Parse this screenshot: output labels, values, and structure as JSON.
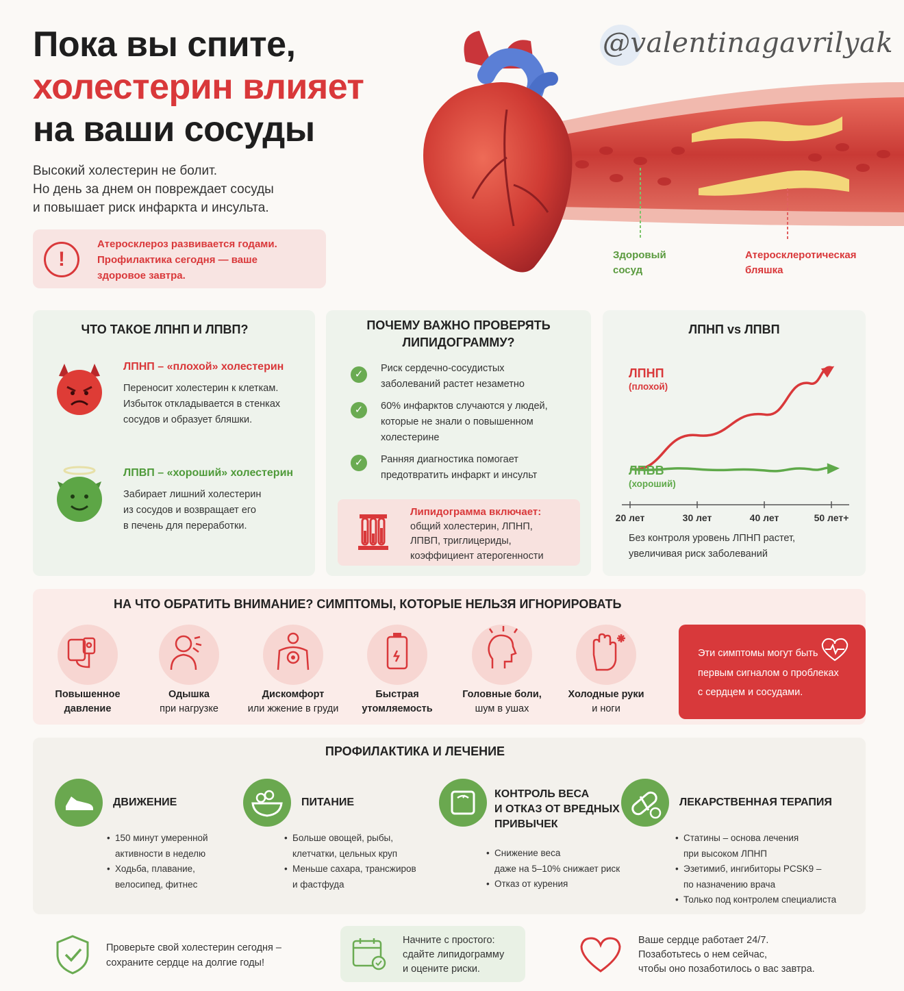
{
  "hero": {
    "title_line1": "Пока вы спите,",
    "title_line2": "холестерин влияет",
    "title_line3": "на ваши сосуды",
    "subtitle_line1": "Высокий холестерин не болит.",
    "subtitle_line2": "Но день за днем он повреждает сосуды",
    "subtitle_line3": "и повышает риск инфаркта и инсульта.",
    "alert_line1": "Атеросклероз развивается годами.",
    "alert_line2": "Профилактика сегодня — ваше",
    "alert_line3": "здоровое завтра.",
    "watermark": "@valentinagavrilyak",
    "label_healthy_1": "Здоровый",
    "label_healthy_2": "сосуд",
    "label_plaque_1": "Атеросклеротическая",
    "label_plaque_2": "бляшка"
  },
  "ldl_hdl": {
    "title": "ЧТО ТАКОЕ ЛПНП И ЛПВП?",
    "ldl_title": "ЛПНП – «плохой» холестерин",
    "ldl_text_1": "Переносит холестерин к клеткам.",
    "ldl_text_2": "Избыток откладывается в стенках",
    "ldl_text_3": "сосудов и образует бляшки.",
    "hdl_title": "ЛПВП – «хороший» холестерин",
    "hdl_text_1": "Забирает лишний холестерин",
    "hdl_text_2": "из сосудов и возвращает его",
    "hdl_text_3": "в печень для переработки."
  },
  "why": {
    "title_1": "ПОЧЕМУ ВАЖНО ПРОВЕРЯТЬ",
    "title_2": "ЛИПИДОГРАММУ?",
    "b1_1": "Риск сердечно-сосудистых",
    "b1_2": "заболеваний растет незаметно",
    "b2_1": "60% инфарктов случаются у людей,",
    "b2_2": "которые не знали о повышенном",
    "b2_3": "холестерине",
    "b3_1": "Ранняя диагностика помогает",
    "b3_2": "предотвратить инфаркт и инсульт",
    "box_title": "Липидограмма включает:",
    "box_1": "общий холестерин, ЛПНП,",
    "box_2": "ЛПВП, триглицериды,",
    "box_3": "коэффициент атерогенности"
  },
  "chart": {
    "title": "ЛПНП vs ЛПВП",
    "caption_1": "Без контроля уровень ЛПНП растет,",
    "caption_2": "увеличивая риск заболеваний",
    "colors": {
      "ldl": "#d9383a",
      "hdl": "#5fa94a",
      "axis": "#555555"
    }
  },
  "chart_data": {
    "type": "line",
    "title": "ЛПНП vs ЛПВП",
    "categories": [
      "20 лет",
      "30 лет",
      "40 лет",
      "50 лет+"
    ],
    "series": [
      {
        "name": "ЛПНП",
        "sublabel": "(плохой)",
        "values": [
          1.0,
          2.3,
          3.1,
          4.3
        ]
      },
      {
        "name": "ЛПВВ",
        "sublabel": "(хороший)",
        "values": [
          1.0,
          1.0,
          0.95,
          1.0
        ]
      }
    ],
    "ylim": [
      0,
      5
    ],
    "grid": false
  },
  "symptoms": {
    "title": "НА ЧТО ОБРАТИТЬ ВНИМАНИЕ? СИМПТОМЫ, КОТОРЫЕ НЕЛЬЗЯ ИГНОРИРОВАТЬ",
    "items": [
      {
        "l1": "Повышенное",
        "l2": "давление",
        "icon": "blood-pressure-icon"
      },
      {
        "l1": "Одышка",
        "l2": "при нагрузке",
        "icon": "shortness-of-breath-icon"
      },
      {
        "l1": "Дискомфорт",
        "l2": "или жжение в груди",
        "icon": "chest-pain-icon"
      },
      {
        "l1": "Быстрая",
        "l2": "утомляемость",
        "icon": "low-battery-icon"
      },
      {
        "l1": "Головные боли,",
        "l2": "шум в ушах",
        "icon": "headache-icon"
      },
      {
        "l1": "Холодные руки",
        "l2": "и ноги",
        "icon": "cold-hand-icon"
      }
    ],
    "warn_1": "Эти симптомы могут быть",
    "warn_2": "первым сигналом о проблеках",
    "warn_3": "с сердцем и сосудами."
  },
  "prevention": {
    "title": "ПРОФИЛАКТИКА И ЛЕЧЕНИЕ",
    "c1_title": "ДВИЖЕНИЕ",
    "c1_b1_1": "150 минут умеренной",
    "c1_b1_2": "активности в неделю",
    "c1_b2_1": "Ходьба, плавание,",
    "c1_b2_2": "велосипед, фитнес",
    "c2_title": "ПИТАНИЕ",
    "c2_b1_1": "Больше овощей, рыбы,",
    "c2_b1_2": "клетчатки, цельных круп",
    "c2_b2_1": "Меньше сахара, трансжиров",
    "c2_b2_2": "и фастфуда",
    "c3_title_1": "КОНТРОЛЬ ВЕСА",
    "c3_title_2": "И ОТКАЗ ОТ ВРЕДНЫХ",
    "c3_title_3": "ПРИВЫЧЕК",
    "c3_b1_1": "Снижение веса",
    "c3_b1_2": "даже на 5–10% снижает риск",
    "c3_b2": "Отказ от курения",
    "c4_title": "ЛЕКАРСТВЕННАЯ ТЕРАПИЯ",
    "c4_b1_1": "Статины – основа лечения",
    "c4_b1_2": "при высоком ЛПНП",
    "c4_b2_1": "Эзетимиб, ингибиторы PCSK9 –",
    "c4_b2_2": "по назначению врача",
    "c4_b3": "Только под контролем специалиста"
  },
  "footer": {
    "f1_1": "Проверьте свой холестерин сегодня –",
    "f1_2": "сохраните сердце на долгие годы!",
    "f2_1": "Начните с простого:",
    "f2_2": "сдайте липидограмму",
    "f2_3": "и оцените риски.",
    "f3_1": "Ваше сердце работает 24/7.",
    "f3_2": "Позаботьтесь о нем сейчас,",
    "f3_3": "чтобы оно позаботилось о вас завтра."
  }
}
